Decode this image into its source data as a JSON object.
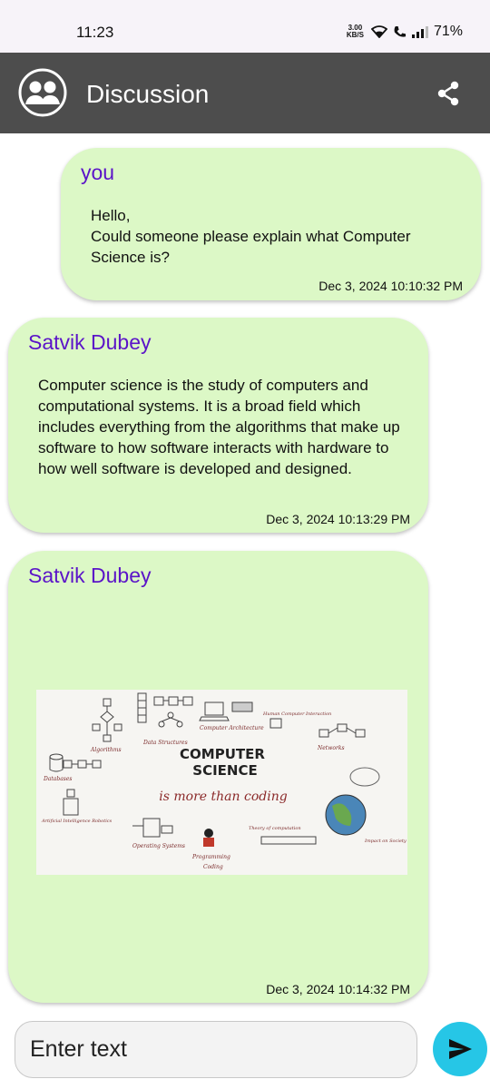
{
  "status_bar": {
    "time": "11:23",
    "net_speed_value": "3.00",
    "net_speed_unit": "KB/S",
    "battery": "71%"
  },
  "app_bar": {
    "title": "Discussion",
    "leading_icon": "group-icon",
    "action_icon": "share-icon"
  },
  "messages": [
    {
      "sender": "you",
      "text": "Hello,\nCould someone please explain what Computer Science is?",
      "timestamp": "Dec 3, 2024 10:10:32 PM"
    },
    {
      "sender": "Satvik Dubey",
      "text": "Computer science is the study of computers and computational systems. It is a broad field which includes everything from the algorithms that make up software to how software interacts with hardware to how well software is developed and designed.",
      "timestamp": "Dec 3, 2024 10:13:29 PM"
    },
    {
      "sender": "Satvik Dubey",
      "image": {
        "title_line1": "COMPUTER",
        "title_line2": "SCIENCE",
        "subtitle": "is more than coding",
        "labels": [
          "Algorithms",
          "Data Structures",
          "Computer Architecture",
          "Human Computer Interaction",
          "Networks",
          "Databases",
          "Artificial Intelligence Robotics",
          "Operating Systems",
          "Programming",
          "Coding",
          "Theory of computation",
          "Impact on Society"
        ]
      },
      "timestamp": "Dec 3, 2024 10:14:32 PM"
    }
  ],
  "composer": {
    "placeholder": "Enter text",
    "send_icon": "send-icon"
  },
  "colors": {
    "app_bar": "#4d4d4d",
    "bubble": "#dcf8c6",
    "sender_name": "#5b14c8",
    "send_button": "#26c6e6"
  }
}
